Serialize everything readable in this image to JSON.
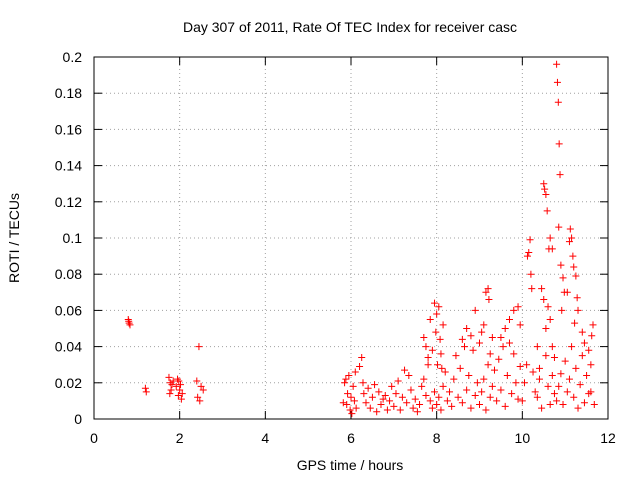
{
  "chart_data": {
    "type": "scatter",
    "title": "Day 307 of 2011, Rate Of TEC Index for receiver casc",
    "xlabel": "GPS time / hours",
    "ylabel": "ROTI / TECUs",
    "xlim": [
      0,
      12
    ],
    "ylim": [
      0,
      0.2
    ],
    "x_ticks": [
      0,
      2,
      4,
      6,
      8,
      10,
      12
    ],
    "x_tick_labels": [
      "0",
      "2",
      "4",
      "6",
      "8",
      "10",
      "12"
    ],
    "y_ticks": [
      0,
      0.02,
      0.04,
      0.06,
      0.08,
      0.1,
      0.12,
      0.14,
      0.16,
      0.18,
      0.2
    ],
    "y_tick_labels": [
      "0",
      "0.02",
      "0.04",
      "0.06",
      "0.08",
      "0.1",
      "0.12",
      "0.14",
      "0.16",
      "0.18",
      "0.2"
    ],
    "grid": true,
    "marker": "+",
    "color": "#ff0000",
    "series": [
      {
        "name": "ROTI",
        "points": [
          [
            0.8,
            0.055
          ],
          [
            0.82,
            0.053
          ],
          [
            0.84,
            0.052
          ],
          [
            0.81,
            0.054
          ],
          [
            1.2,
            0.017
          ],
          [
            1.22,
            0.015
          ],
          [
            1.75,
            0.023
          ],
          [
            1.78,
            0.02
          ],
          [
            1.8,
            0.016
          ],
          [
            1.82,
            0.019
          ],
          [
            1.77,
            0.014
          ],
          [
            1.85,
            0.021
          ],
          [
            1.92,
            0.018
          ],
          [
            1.95,
            0.022
          ],
          [
            1.97,
            0.013
          ],
          [
            2.0,
            0.016
          ],
          [
            2.02,
            0.019
          ],
          [
            2.04,
            0.011
          ],
          [
            1.98,
            0.021
          ],
          [
            2.06,
            0.014
          ],
          [
            2.4,
            0.021
          ],
          [
            2.42,
            0.012
          ],
          [
            2.45,
            0.04
          ],
          [
            2.47,
            0.01
          ],
          [
            2.5,
            0.018
          ],
          [
            2.55,
            0.016
          ],
          [
            5.82,
            0.009
          ],
          [
            5.85,
            0.02
          ],
          [
            5.88,
            0.022
          ],
          [
            5.9,
            0.008
          ],
          [
            5.92,
            0.014
          ],
          [
            5.95,
            0.024
          ],
          [
            5.98,
            0.005
          ],
          [
            6.0,
            0.012
          ],
          [
            6.02,
            0.003
          ],
          [
            6.05,
            0.018
          ],
          [
            6.08,
            0.01
          ],
          [
            6.1,
            0.026
          ],
          [
            6.12,
            0.006
          ],
          [
            6.2,
            0.029
          ],
          [
            6.25,
            0.034
          ],
          [
            6.28,
            0.02
          ],
          [
            6.3,
            0.014
          ],
          [
            6.35,
            0.009
          ],
          [
            6.4,
            0.017
          ],
          [
            6.45,
            0.006
          ],
          [
            6.5,
            0.012
          ],
          [
            6.55,
            0.019
          ],
          [
            6.6,
            0.004
          ],
          [
            6.65,
            0.015
          ],
          [
            6.7,
            0.008
          ],
          [
            6.75,
            0.011
          ],
          [
            6.8,
            0.013
          ],
          [
            6.85,
            0.005
          ],
          [
            6.9,
            0.01
          ],
          [
            6.95,
            0.018
          ],
          [
            7.0,
            0.007
          ],
          [
            7.05,
            0.014
          ],
          [
            7.1,
            0.021
          ],
          [
            7.15,
            0.005
          ],
          [
            7.2,
            0.012
          ],
          [
            7.25,
            0.027
          ],
          [
            7.3,
            0.009
          ],
          [
            7.35,
            0.024
          ],
          [
            7.4,
            0.016
          ],
          [
            7.45,
            0.006
          ],
          [
            7.5,
            0.011
          ],
          [
            7.55,
            0.004
          ],
          [
            7.6,
            0.008
          ],
          [
            7.65,
            0.018
          ],
          [
            7.7,
            0.022
          ],
          [
            7.75,
            0.013
          ],
          [
            7.8,
            0.03
          ],
          [
            7.85,
            0.01
          ],
          [
            7.9,
            0.006
          ],
          [
            7.95,
            0.015
          ],
          [
            7.7,
            0.045
          ],
          [
            7.75,
            0.04
          ],
          [
            7.8,
            0.034
          ],
          [
            7.85,
            0.055
          ],
          [
            7.9,
            0.038
          ],
          [
            7.95,
            0.064
          ],
          [
            7.98,
            0.048
          ],
          [
            8.0,
            0.058
          ],
          [
            8.02,
            0.03
          ],
          [
            8.05,
            0.062
          ],
          [
            8.08,
            0.044
          ],
          [
            8.1,
            0.036
          ],
          [
            8.12,
            0.028
          ],
          [
            8.15,
            0.052
          ],
          [
            8.0,
            0.008
          ],
          [
            8.05,
            0.012
          ],
          [
            8.1,
            0.005
          ],
          [
            8.15,
            0.018
          ],
          [
            8.2,
            0.026
          ],
          [
            8.25,
            0.01
          ],
          [
            8.3,
            0.015
          ],
          [
            8.35,
            0.007
          ],
          [
            8.4,
            0.022
          ],
          [
            8.45,
            0.035
          ],
          [
            8.5,
            0.012
          ],
          [
            8.55,
            0.028
          ],
          [
            8.6,
            0.009
          ],
          [
            8.65,
            0.04
          ],
          [
            8.7,
            0.016
          ],
          [
            8.75,
            0.024
          ],
          [
            8.8,
            0.006
          ],
          [
            8.85,
            0.038
          ],
          [
            8.9,
            0.013
          ],
          [
            8.95,
            0.02
          ],
          [
            8.6,
            0.044
          ],
          [
            8.7,
            0.05
          ],
          [
            8.8,
            0.046
          ],
          [
            8.9,
            0.06
          ],
          [
            9.0,
            0.042
          ],
          [
            9.05,
            0.048
          ],
          [
            9.1,
            0.052
          ],
          [
            9.15,
            0.07
          ],
          [
            9.2,
            0.072
          ],
          [
            9.22,
            0.066
          ],
          [
            9.25,
            0.036
          ],
          [
            9.3,
            0.045
          ],
          [
            9.0,
            0.008
          ],
          [
            9.05,
            0.015
          ],
          [
            9.1,
            0.022
          ],
          [
            9.15,
            0.005
          ],
          [
            9.2,
            0.03
          ],
          [
            9.25,
            0.012
          ],
          [
            9.3,
            0.018
          ],
          [
            9.35,
            0.027
          ],
          [
            9.4,
            0.01
          ],
          [
            9.45,
            0.033
          ],
          [
            9.5,
            0.016
          ],
          [
            9.55,
            0.04
          ],
          [
            9.6,
            0.007
          ],
          [
            9.65,
            0.024
          ],
          [
            9.7,
            0.042
          ],
          [
            9.75,
            0.014
          ],
          [
            9.8,
            0.036
          ],
          [
            9.85,
            0.02
          ],
          [
            9.9,
            0.011
          ],
          [
            9.95,
            0.029
          ],
          [
            9.5,
            0.045
          ],
          [
            9.6,
            0.05
          ],
          [
            9.7,
            0.055
          ],
          [
            9.8,
            0.06
          ],
          [
            9.9,
            0.062
          ],
          [
            9.95,
            0.052
          ],
          [
            10.0,
            0.01
          ],
          [
            10.05,
            0.02
          ],
          [
            10.1,
            0.03
          ],
          [
            10.12,
            0.09
          ],
          [
            10.15,
            0.092
          ],
          [
            10.18,
            0.099
          ],
          [
            10.2,
            0.08
          ],
          [
            10.22,
            0.072
          ],
          [
            10.25,
            0.026
          ],
          [
            10.3,
            0.015
          ],
          [
            10.35,
            0.04
          ],
          [
            10.4,
            0.022
          ],
          [
            10.45,
            0.072
          ],
          [
            10.5,
            0.066
          ],
          [
            10.55,
            0.05
          ],
          [
            10.6,
            0.062
          ],
          [
            10.62,
            0.094
          ],
          [
            10.65,
            0.055
          ],
          [
            10.7,
            0.04
          ],
          [
            10.75,
            0.034
          ],
          [
            10.8,
            0.196
          ],
          [
            10.82,
            0.186
          ],
          [
            10.84,
            0.175
          ],
          [
            10.86,
            0.152
          ],
          [
            10.88,
            0.135
          ],
          [
            10.85,
            0.106
          ],
          [
            10.9,
            0.085
          ],
          [
            10.95,
            0.078
          ],
          [
            10.92,
            0.06
          ],
          [
            10.98,
            0.07
          ],
          [
            10.5,
            0.13
          ],
          [
            10.52,
            0.127
          ],
          [
            10.55,
            0.124
          ],
          [
            10.58,
            0.115
          ],
          [
            10.65,
            0.1
          ],
          [
            10.7,
            0.094
          ],
          [
            11.05,
            0.07
          ],
          [
            11.1,
            0.098
          ],
          [
            11.12,
            0.105
          ],
          [
            11.15,
            0.1
          ],
          [
            11.18,
            0.09
          ],
          [
            11.2,
            0.084
          ],
          [
            11.25,
            0.079
          ],
          [
            11.28,
            0.067
          ],
          [
            11.3,
            0.06
          ],
          [
            11.22,
            0.053
          ],
          [
            10.8,
            0.01
          ],
          [
            10.85,
            0.018
          ],
          [
            10.9,
            0.025
          ],
          [
            10.95,
            0.008
          ],
          [
            11.0,
            0.032
          ],
          [
            11.05,
            0.015
          ],
          [
            11.1,
            0.022
          ],
          [
            11.15,
            0.04
          ],
          [
            11.2,
            0.012
          ],
          [
            11.25,
            0.028
          ],
          [
            11.3,
            0.006
          ],
          [
            11.35,
            0.019
          ],
          [
            11.4,
            0.035
          ],
          [
            11.45,
            0.009
          ],
          [
            11.5,
            0.024
          ],
          [
            11.55,
            0.014
          ],
          [
            11.6,
            0.03
          ],
          [
            11.62,
            0.046
          ],
          [
            11.65,
            0.052
          ],
          [
            11.68,
            0.008
          ],
          [
            10.35,
            0.012
          ],
          [
            10.4,
            0.028
          ],
          [
            10.45,
            0.006
          ],
          [
            10.55,
            0.035
          ],
          [
            10.6,
            0.018
          ],
          [
            10.65,
            0.008
          ],
          [
            10.7,
            0.024
          ],
          [
            10.75,
            0.014
          ],
          [
            11.4,
            0.048
          ],
          [
            11.45,
            0.042
          ],
          [
            11.55,
            0.038
          ],
          [
            11.6,
            0.015
          ]
        ]
      }
    ]
  }
}
